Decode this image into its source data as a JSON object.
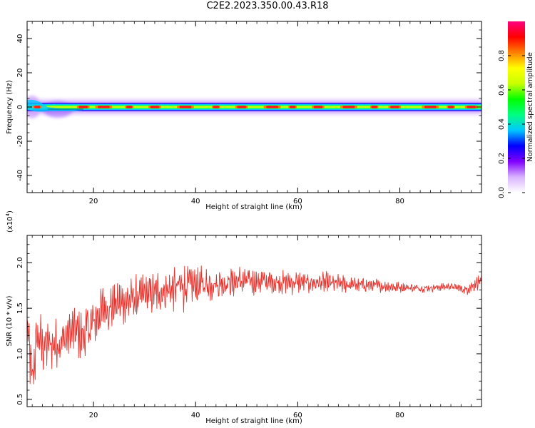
{
  "figure": {
    "title": "C2E2.2023.350.00.43.R18"
  },
  "chart_data": [
    {
      "type": "heatmap",
      "name": "spectrogram",
      "xlabel": "Height of straight line (km)",
      "ylabel": "Frequency (Hz)",
      "xlim": [
        7,
        96
      ],
      "ylim": [
        -50,
        50
      ],
      "x_ticks": [
        20,
        40,
        60,
        80
      ],
      "y_ticks": [
        -40,
        -20,
        0,
        20,
        40
      ],
      "colorbar": {
        "label": "Normalized spectral amplitude",
        "range": [
          0,
          1
        ],
        "ticks": [
          "0.0",
          "0.2",
          "0.4",
          "0.6",
          "0.8"
        ],
        "colormap": [
          "#ffffff",
          "#d9b3ff",
          "#8000ff",
          "#0000ff",
          "#00c8ff",
          "#00ff80",
          "#00ff00",
          "#c8ff00",
          "#ffff00",
          "#ff8000",
          "#ff0000",
          "#ff0080"
        ]
      },
      "band": {
        "center_frequency_hz": 0,
        "description_peaks_km": [
          9,
          18,
          22,
          27,
          32,
          38,
          44,
          49,
          55,
          59,
          64,
          70,
          75,
          79,
          86,
          90,
          94
        ]
      }
    },
    {
      "type": "line",
      "name": "snr",
      "xlabel": "Height of straight line (km)",
      "ylabel": "SNR (10 * v/v)",
      "y_multiplier": "(x10^4)",
      "xlim": [
        7,
        96
      ],
      "ylim": [
        0.42,
        2.3
      ],
      "x_ticks": [
        20,
        40,
        60,
        80
      ],
      "y_ticks": [
        "0.5",
        "1.0",
        "1.5",
        "2.0"
      ],
      "series_color": "#e8302a",
      "envelope": {
        "x": [
          7,
          8,
          9,
          10,
          12,
          14,
          16,
          18,
          20,
          22,
          25,
          28,
          30,
          33,
          36,
          38,
          40,
          45,
          50,
          55,
          60,
          65,
          70,
          75,
          80,
          85,
          90,
          93,
          95,
          96
        ],
        "mean": [
          1.3,
          0.7,
          1.2,
          1.1,
          1.1,
          1.15,
          1.25,
          1.2,
          1.35,
          1.5,
          1.55,
          1.6,
          1.65,
          1.68,
          1.72,
          1.75,
          1.75,
          1.78,
          1.8,
          1.79,
          1.78,
          1.78,
          1.76,
          1.75,
          1.73,
          1.72,
          1.74,
          1.7,
          1.78,
          1.8
        ],
        "amplitude": [
          0.45,
          0.3,
          0.4,
          0.35,
          0.3,
          0.28,
          0.3,
          0.35,
          0.32,
          0.3,
          0.28,
          0.26,
          0.25,
          0.25,
          0.28,
          0.3,
          0.22,
          0.2,
          0.17,
          0.15,
          0.14,
          0.13,
          0.1,
          0.08,
          0.06,
          0.05,
          0.04,
          0.06,
          0.1,
          0.08
        ]
      }
    }
  ]
}
